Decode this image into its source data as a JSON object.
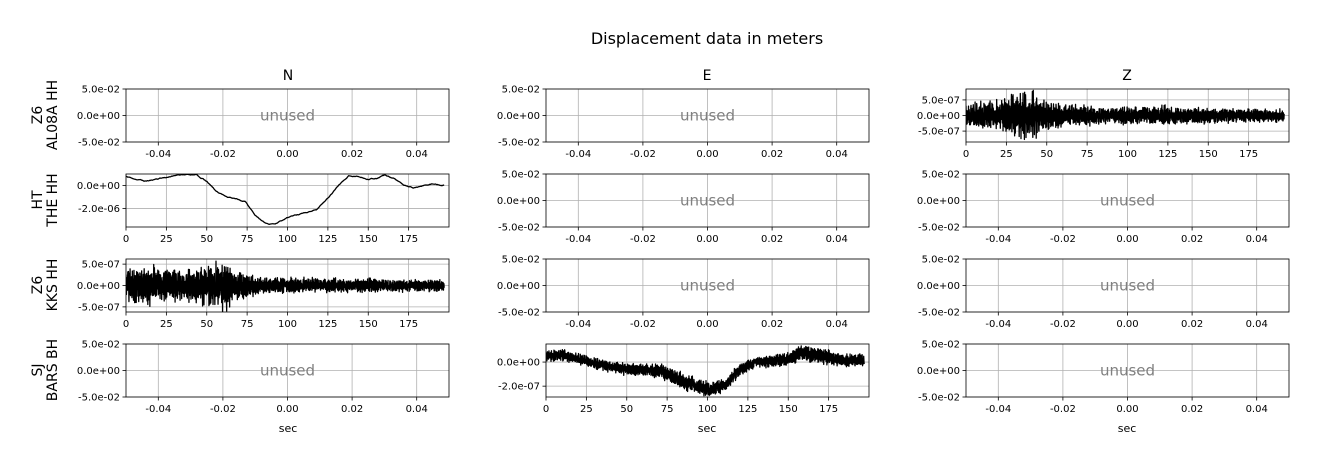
{
  "figure": {
    "title": "Displacement data in meters",
    "columns": [
      "N",
      "E",
      "Z"
    ],
    "rows": [
      {
        "network": "Z6",
        "station": "AL08A HH"
      },
      {
        "network": "HT",
        "station": "THE HH"
      },
      {
        "network": "Z6",
        "station": "KKS HH"
      },
      {
        "network": "SJ",
        "station": "BARS BH"
      }
    ],
    "xlabel": "sec",
    "unused_label": "unused"
  },
  "chart_data": [
    {
      "row": 0,
      "col": 0,
      "type": "line",
      "unused": true,
      "xlim": [
        -0.05,
        0.05
      ],
      "ylim": [
        -0.05,
        0.05
      ],
      "xticks": [
        "-0.04",
        "-0.02",
        "0.00",
        "0.02",
        "0.04"
      ],
      "yticks": [
        "5.0e-02",
        "0.0e+00",
        "-5.0e-02"
      ]
    },
    {
      "row": 0,
      "col": 1,
      "type": "line",
      "unused": true,
      "xlim": [
        -0.05,
        0.05
      ],
      "ylim": [
        -0.05,
        0.05
      ],
      "xticks": [
        "-0.04",
        "-0.02",
        "0.00",
        "0.02",
        "0.04"
      ],
      "yticks": [
        "5.0e-02",
        "0.0e+00",
        "-5.0e-02"
      ]
    },
    {
      "row": 0,
      "col": 2,
      "type": "line",
      "unused": false,
      "xlim": [
        0,
        200
      ],
      "ylim": [
        -8.5e-07,
        8.5e-07
      ],
      "xticks": [
        "0",
        "25",
        "50",
        "75",
        "100",
        "125",
        "150",
        "175"
      ],
      "yticks": [
        "5.0e-07",
        "0.0e+00",
        "-5.0e-07"
      ],
      "series": {
        "style": "noise",
        "env": [
          [
            0,
            3.2e-07
          ],
          [
            18,
            4e-07
          ],
          [
            30,
            6e-07
          ],
          [
            38,
            7.8e-07
          ],
          [
            45,
            5.5e-07
          ],
          [
            60,
            3e-07
          ],
          [
            90,
            2.4e-07
          ],
          [
            130,
            2.6e-07
          ],
          [
            150,
            2.2e-07
          ],
          [
            200,
            1.8e-07
          ]
        ],
        "mean": [
          [
            0,
            0
          ],
          [
            200,
            0
          ]
        ]
      }
    },
    {
      "row": 1,
      "col": 0,
      "type": "line",
      "unused": false,
      "xlim": [
        0,
        200
      ],
      "ylim": [
        -3.6e-06,
        1e-06
      ],
      "xticks": [
        "0",
        "25",
        "50",
        "75",
        "100",
        "125",
        "150",
        "175"
      ],
      "yticks": [
        "0.0e+00",
        "-2.0e-06"
      ],
      "series": {
        "style": "smooth",
        "env": [
          [
            0,
            1e-07
          ],
          [
            200,
            1e-07
          ]
        ],
        "mean": [
          [
            0,
            8e-07
          ],
          [
            5,
            5.5e-07
          ],
          [
            12,
            4e-07
          ],
          [
            20,
            5.8e-07
          ],
          [
            30,
            8.5e-07
          ],
          [
            38,
            9.8e-07
          ],
          [
            44,
            9e-07
          ],
          [
            50,
            3.5e-07
          ],
          [
            56,
            -5e-07
          ],
          [
            62,
            -1e-06
          ],
          [
            70,
            -1.25e-06
          ],
          [
            74,
            -1.4e-06
          ],
          [
            80,
            -2.6e-06
          ],
          [
            86,
            -3.25e-06
          ],
          [
            92,
            -3.4e-06
          ],
          [
            100,
            -2.75e-06
          ],
          [
            110,
            -2.4e-06
          ],
          [
            118,
            -2.1e-06
          ],
          [
            125,
            -1.1e-06
          ],
          [
            132,
            1e-07
          ],
          [
            138,
            8.5e-07
          ],
          [
            144,
            8e-07
          ],
          [
            150,
            5.5e-07
          ],
          [
            156,
            6.5e-07
          ],
          [
            160,
            9e-07
          ],
          [
            166,
            6e-07
          ],
          [
            172,
            0.0
          ],
          [
            178,
            -2e-07
          ],
          [
            184,
            0.0
          ],
          [
            190,
            1.5e-07
          ],
          [
            196,
            2e-08
          ],
          [
            200,
            1e-08
          ]
        ]
      }
    },
    {
      "row": 1,
      "col": 1,
      "type": "line",
      "unused": true,
      "xlim": [
        -0.05,
        0.05
      ],
      "ylim": [
        -0.05,
        0.05
      ],
      "xticks": [
        "-0.04",
        "-0.02",
        "0.00",
        "0.02",
        "0.04"
      ],
      "yticks": [
        "5.0e-02",
        "0.0e+00",
        "-5.0e-02"
      ]
    },
    {
      "row": 1,
      "col": 2,
      "type": "line",
      "unused": true,
      "xlim": [
        -0.05,
        0.05
      ],
      "ylim": [
        -0.05,
        0.05
      ],
      "xticks": [
        "-0.04",
        "-0.02",
        "0.00",
        "0.02",
        "0.04"
      ],
      "yticks": [
        "5.0e-02",
        "0.0e+00",
        "-5.0e-02"
      ]
    },
    {
      "row": 2,
      "col": 0,
      "type": "line",
      "unused": false,
      "xlim": [
        0,
        200
      ],
      "ylim": [
        -6.2e-07,
        6.2e-07
      ],
      "xticks": [
        "0",
        "25",
        "50",
        "75",
        "100",
        "125",
        "150",
        "175"
      ],
      "yticks": [
        "5.0e-07",
        "0.0e+00",
        "-5.0e-07"
      ],
      "series": {
        "style": "noise",
        "env": [
          [
            0,
            3e-07
          ],
          [
            10,
            4.2e-07
          ],
          [
            25,
            3.6e-07
          ],
          [
            40,
            3.2e-07
          ],
          [
            55,
            4.8e-07
          ],
          [
            60,
            5.8e-07
          ],
          [
            68,
            3e-07
          ],
          [
            85,
            1.8e-07
          ],
          [
            120,
            1.5e-07
          ],
          [
            160,
            1.3e-07
          ],
          [
            200,
            1.2e-07
          ]
        ],
        "mean": [
          [
            0,
            0
          ],
          [
            200,
            0
          ]
        ]
      }
    },
    {
      "row": 2,
      "col": 1,
      "type": "line",
      "unused": true,
      "xlim": [
        -0.05,
        0.05
      ],
      "ylim": [
        -0.05,
        0.05
      ],
      "xticks": [
        "-0.04",
        "-0.02",
        "0.00",
        "0.02",
        "0.04"
      ],
      "yticks": [
        "5.0e-02",
        "0.0e+00",
        "-5.0e-02"
      ]
    },
    {
      "row": 2,
      "col": 2,
      "type": "line",
      "unused": true,
      "xlim": [
        -0.05,
        0.05
      ],
      "ylim": [
        -0.05,
        0.05
      ],
      "xticks": [
        "-0.04",
        "-0.02",
        "0.00",
        "0.02",
        "0.04"
      ],
      "yticks": [
        "5.0e-02",
        "0.0e+00",
        "-5.0e-02"
      ]
    },
    {
      "row": 3,
      "col": 0,
      "type": "line",
      "unused": true,
      "xlim": [
        -0.05,
        0.05
      ],
      "ylim": [
        -0.05,
        0.05
      ],
      "xticks": [
        "-0.04",
        "-0.02",
        "0.00",
        "0.02",
        "0.04"
      ],
      "yticks": [
        "5.0e-02",
        "0.0e+00",
        "-5.0e-02"
      ]
    },
    {
      "row": 3,
      "col": 1,
      "type": "line",
      "unused": false,
      "xlim": [
        0,
        200
      ],
      "ylim": [
        -2.9e-07,
        1.5e-07
      ],
      "xticks": [
        "0",
        "25",
        "50",
        "75",
        "100",
        "125",
        "150",
        "175"
      ],
      "yticks": [
        "0.0e+00",
        "-2.0e-07"
      ],
      "series": {
        "style": "noise",
        "env": [
          [
            0,
            4e-08
          ],
          [
            60,
            4.5e-08
          ],
          [
            80,
            6e-08
          ],
          [
            100,
            5.5e-08
          ],
          [
            130,
            4e-08
          ],
          [
            160,
            6e-08
          ],
          [
            200,
            4e-08
          ]
        ],
        "mean": [
          [
            0,
            5e-08
          ],
          [
            10,
            6e-08
          ],
          [
            30,
            -1e-08
          ],
          [
            50,
            -6e-08
          ],
          [
            70,
            -7e-08
          ],
          [
            85,
            -1.6e-07
          ],
          [
            100,
            -2.3e-07
          ],
          [
            110,
            -2e-07
          ],
          [
            120,
            -6e-08
          ],
          [
            130,
            0.0
          ],
          [
            150,
            2e-08
          ],
          [
            158,
            8e-08
          ],
          [
            170,
            5e-08
          ],
          [
            185,
            1e-08
          ],
          [
            200,
            2e-08
          ]
        ]
      }
    },
    {
      "row": 3,
      "col": 2,
      "type": "line",
      "unused": true,
      "xlim": [
        -0.05,
        0.05
      ],
      "ylim": [
        -0.05,
        0.05
      ],
      "xticks": [
        "-0.04",
        "-0.02",
        "0.00",
        "0.02",
        "0.04"
      ],
      "yticks": [
        "5.0e-02",
        "0.0e+00",
        "-5.0e-02"
      ]
    }
  ]
}
